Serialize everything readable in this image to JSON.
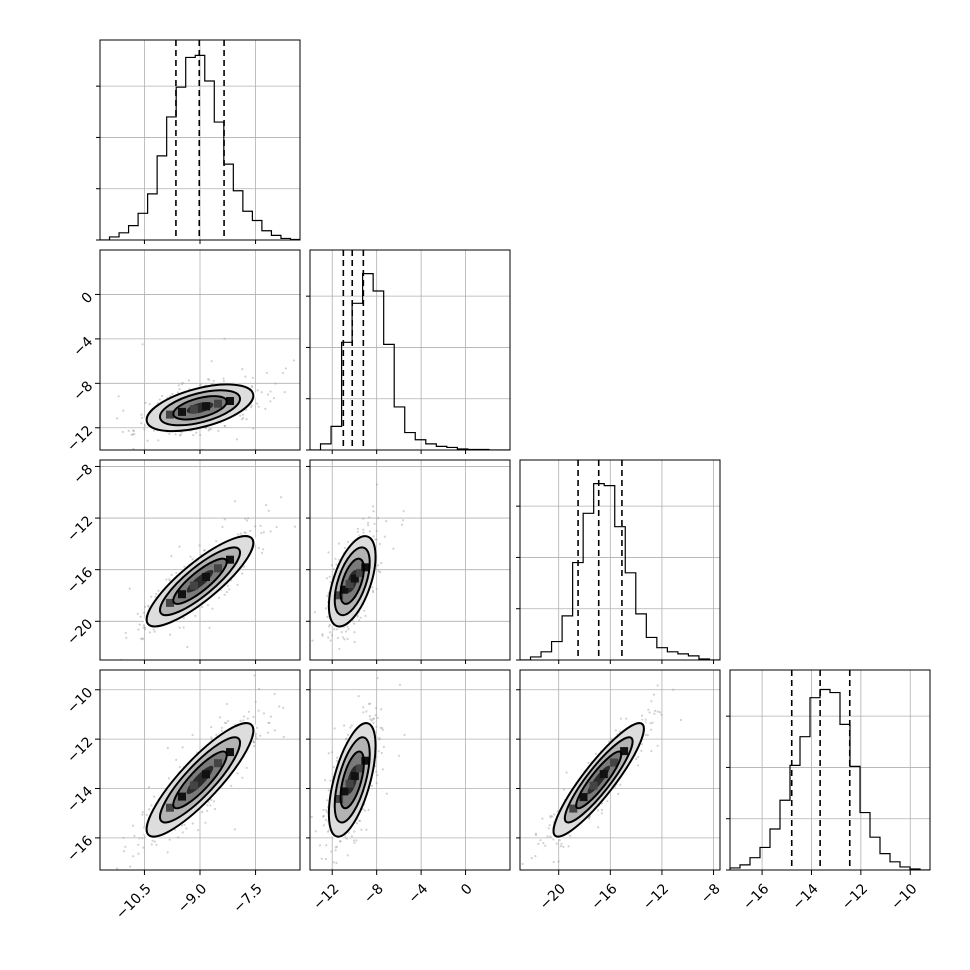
{
  "chart_data": {
    "type": "corner",
    "n_params": 4,
    "grid": true,
    "params": [
      {
        "range": [
          -11.7,
          -6.3
        ],
        "ticks": [
          -10.5,
          -9.0,
          -7.5
        ],
        "tick_labels": [
          "−10.5",
          "−9.0",
          "−7.5"
        ],
        "hist_bins": [
          0,
          0.3,
          0.7,
          1.4,
          2.6,
          4.5,
          8.2,
          12.0,
          14.9,
          17.8,
          18.0,
          15.5,
          11.5,
          7.4,
          4.8,
          2.8,
          1.9,
          0.9,
          0.45,
          0.15,
          0.05
        ],
        "hist_max": 19.5,
        "quantiles": [
          -9.65,
          -9.02,
          -8.35
        ],
        "diag_ticks": [
          0,
          5,
          10,
          15
        ]
      },
      {
        "range": [
          -14,
          4
        ],
        "ticks": [
          -12,
          -8,
          -4,
          0
        ],
        "tick_labels": [
          "−12",
          "−8",
          "−4",
          "0"
        ],
        "hist_bins": [
          0,
          0.6,
          2.3,
          10.5,
          14.3,
          17.2,
          15.5,
          10.3,
          4.2,
          1.7,
          1.0,
          0.6,
          0.35,
          0.25,
          0.1,
          0.05,
          0.05,
          0,
          0
        ],
        "hist_max": 19.5,
        "quantiles": [
          -11.0,
          -10.2,
          -9.2
        ],
        "diag_ticks": [
          0,
          5,
          10,
          15
        ]
      },
      {
        "range": [
          -23,
          -7.5
        ],
        "ticks": [
          -20,
          -16,
          -12,
          -8
        ],
        "tick_labels": [
          "−20",
          "−16",
          "−12",
          "−8"
        ],
        "hist_bins": [
          0,
          0.3,
          0.8,
          1.8,
          4.3,
          9.5,
          14.3,
          17.2,
          17.0,
          13.0,
          8.5,
          4.5,
          2.2,
          1.2,
          0.8,
          0.6,
          0.4,
          0.1,
          0
        ],
        "hist_max": 19.5,
        "quantiles": [
          -18.5,
          -16.9,
          -15.1
        ],
        "diag_ticks": [
          0,
          5,
          10,
          15
        ]
      },
      {
        "range": [
          -17.3,
          -9.2
        ],
        "ticks": [
          -16,
          -14,
          -12,
          -10
        ],
        "tick_labels": [
          "−16",
          "−14",
          "−12",
          "−10"
        ],
        "hist_bins": [
          0.2,
          0.5,
          1.2,
          2.2,
          4.0,
          6.8,
          10.2,
          13.0,
          16.8,
          17.6,
          17.3,
          14.2,
          10.1,
          5.6,
          3.2,
          1.6,
          0.8,
          0.3,
          0.1,
          0
        ],
        "hist_max": 19.5,
        "quantiles": [
          -14.8,
          -13.65,
          -12.45
        ],
        "diag_ticks": [
          0,
          5,
          10,
          15
        ]
      }
    ],
    "pairs": [
      {
        "row": 1,
        "col": 0,
        "mean": [
          -9.0,
          -10.2
        ],
        "std": [
          0.72,
          1.05
        ],
        "rho": 0.52
      },
      {
        "row": 2,
        "col": 0,
        "mean": [
          -9.0,
          -16.9
        ],
        "std": [
          0.72,
          1.75
        ],
        "rho": 0.85
      },
      {
        "row": 2,
        "col": 1,
        "mean": [
          -10.2,
          -16.9
        ],
        "std": [
          1.05,
          1.75
        ],
        "rho": 0.55
      },
      {
        "row": 3,
        "col": 0,
        "mean": [
          -9.0,
          -13.65
        ],
        "std": [
          0.72,
          1.15
        ],
        "rho": 0.87
      },
      {
        "row": 3,
        "col": 1,
        "mean": [
          -10.2,
          -13.65
        ],
        "std": [
          1.05,
          1.15
        ],
        "rho": 0.6
      },
      {
        "row": 3,
        "col": 2,
        "mean": [
          -16.9,
          -13.65
        ],
        "std": [
          1.75,
          1.15
        ],
        "rho": 0.9
      }
    ],
    "contour_levels_sigma": [
      0.5,
      1.0,
      1.5,
      2.0
    ],
    "colors": {
      "line": "#000000",
      "points": "#999999",
      "grid": "#b0b0b0",
      "background": "#ffffff"
    }
  }
}
